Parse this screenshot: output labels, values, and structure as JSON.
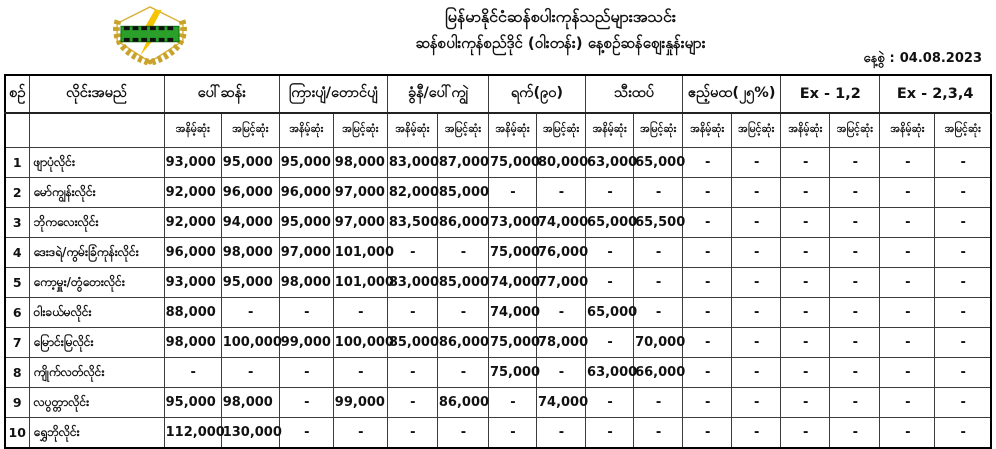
{
  "header": {
    "org_title": "မြန်မာနိုင်ငံဆန်စပါးကုန်သည်များအသင်း",
    "report_title": "ဆန်စပါးကုန်စည်ဒိုင် (ဝါးတန်း) နေ့စဉ်ဆန်ဈေးနှုန်းများ",
    "date_label": "နေ့စွဲ",
    "date_separator": ":",
    "date_value": "04.08.2023",
    "logo_name": "myanmar-rice-traders-association-logo",
    "logo_colors": {
      "wreath": "#c9a22c",
      "band": "#2aa02a",
      "bolt": "#f5c400",
      "sprocket": "#111111"
    }
  },
  "table": {
    "col_no_label": "စဥ်",
    "col_name_label": "လိုင်းအမည်",
    "sub_low": "အနိမ့်ဆုံး",
    "sub_high": "အမြင့်ဆုံး",
    "groups": [
      "ပေါ်ဆန်း",
      "ကြားပျံ/တောင်ပျံ",
      "ခွံနီ/ပေါ်ကျွဲ",
      "ရက်(၉၀)",
      "သီးထပ်",
      "ဧည့်မထ(၂၅%)",
      "Ex - 1,2",
      "Ex - 2,3,4"
    ],
    "rows": [
      {
        "no": "1",
        "name": "ဖျာပုံလိုင်း",
        "values": [
          "93,000",
          "95,000",
          "95,000",
          "98,000",
          "83,000",
          "87,000",
          "75,000",
          "80,000",
          "63,000",
          "65,000",
          "-",
          "-",
          "-",
          "-",
          "-",
          "-"
        ]
      },
      {
        "no": "2",
        "name": "မော်ကျွန်းလိုင်း",
        "values": [
          "92,000",
          "96,000",
          "96,000",
          "97,000",
          "82,000",
          "85,000",
          "-",
          "-",
          "-",
          "-",
          "-",
          "-",
          "-",
          "-",
          "-",
          "-"
        ]
      },
      {
        "no": "3",
        "name": "ဘိုကလေးလိုင်း",
        "values": [
          "92,000",
          "94,000",
          "95,000",
          "97,000",
          "83,500",
          "86,000",
          "73,000",
          "74,000",
          "65,000",
          "65,500",
          "-",
          "-",
          "-",
          "-",
          "-",
          "-"
        ]
      },
      {
        "no": "4",
        "name": "ဒေးဒရဲ/ကွမ်းခြံကုန်းလိုင်း",
        "values": [
          "96,000",
          "98,000",
          "97,000",
          "101,000",
          "-",
          "-",
          "75,000",
          "76,000",
          "-",
          "-",
          "-",
          "-",
          "-",
          "-",
          "-",
          "-"
        ]
      },
      {
        "no": "5",
        "name": "ကော့မှူး/တွံတေးလိုင်း",
        "values": [
          "93,000",
          "95,000",
          "98,000",
          "101,000",
          "83,000",
          "85,000",
          "74,000",
          "77,000",
          "-",
          "-",
          "-",
          "-",
          "-",
          "-",
          "-",
          "-"
        ]
      },
      {
        "no": "6",
        "name": "ဝါးခယ်မလိုင်း",
        "values": [
          "88,000",
          "-",
          "-",
          "-",
          "-",
          "-",
          "74,000",
          "-",
          "65,000",
          "-",
          "-",
          "-",
          "-",
          "-",
          "-",
          "-"
        ]
      },
      {
        "no": "7",
        "name": "မြောင်းမြလိုင်း",
        "values": [
          "98,000",
          "100,000",
          "99,000",
          "100,000",
          "85,000",
          "86,000",
          "75,000",
          "78,000",
          "-",
          "70,000",
          "-",
          "-",
          "-",
          "-",
          "-",
          "-"
        ]
      },
      {
        "no": "8",
        "name": "ကျိုက်လတ်လိုင်း",
        "values": [
          "-",
          "-",
          "-",
          "-",
          "-",
          "-",
          "75,000",
          "-",
          "63,000",
          "66,000",
          "-",
          "-",
          "-",
          "-",
          "-",
          "-"
        ]
      },
      {
        "no": "9",
        "name": "လပွတ္တာလိုင်း",
        "values": [
          "95,000",
          "98,000",
          "-",
          "99,000",
          "-",
          "86,000",
          "-",
          "74,000",
          "-",
          "-",
          "-",
          "-",
          "-",
          "-",
          "-",
          "-"
        ]
      },
      {
        "no": "10",
        "name": "ရွှေဘိုလိုင်း",
        "values": [
          "112,000",
          "130,000",
          "-",
          "-",
          "-",
          "-",
          "-",
          "-",
          "-",
          "-",
          "-",
          "-",
          "-",
          "-",
          "-",
          "-"
        ]
      }
    ]
  }
}
